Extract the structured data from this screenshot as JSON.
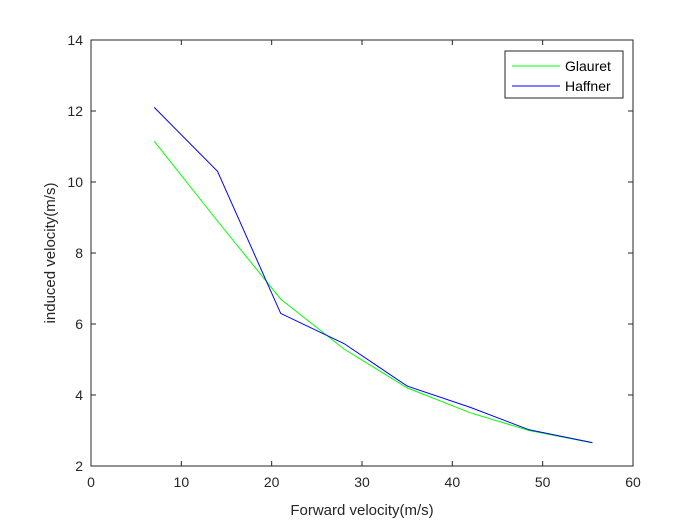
{
  "chart_data": {
    "type": "line",
    "title": "",
    "xlabel": "Forward velocity(m/s)",
    "ylabel": "induced velocity(m/s)",
    "xlim": [
      0,
      60
    ],
    "ylim": [
      2,
      14
    ],
    "xticks": [
      "0",
      "10",
      "20",
      "30",
      "40",
      "50",
      "60"
    ],
    "yticks": [
      "2",
      "4",
      "6",
      "8",
      "10",
      "12",
      "14"
    ],
    "grid": false,
    "legend_position": "top-right",
    "series": [
      {
        "name": "Glauret",
        "color": "#00ff00",
        "x": [
          7,
          14,
          21,
          28,
          35,
          42,
          48.5,
          55.5
        ],
        "y": [
          11.15,
          8.9,
          6.7,
          5.3,
          4.2,
          3.5,
          3.0,
          2.65
        ]
      },
      {
        "name": "Haffner",
        "color": "#0000ff",
        "x": [
          7,
          14,
          21,
          28,
          35,
          42,
          48.5,
          55.5
        ],
        "y": [
          12.1,
          10.3,
          6.3,
          5.45,
          4.25,
          3.65,
          3.02,
          2.66
        ]
      }
    ]
  }
}
